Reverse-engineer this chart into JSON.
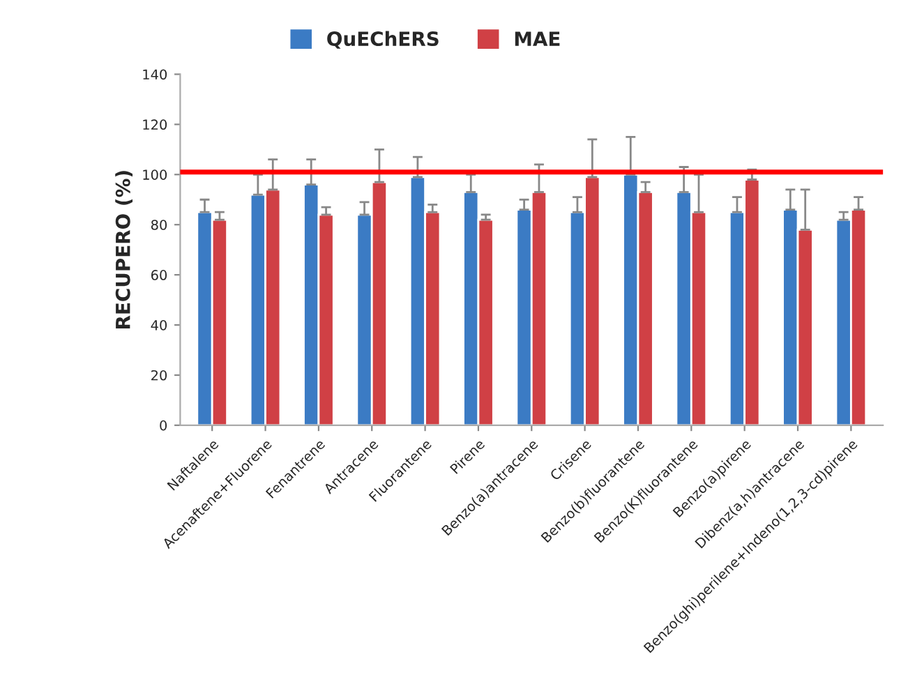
{
  "chart_data": {
    "type": "bar",
    "ylabel": "RECUPERO (%)",
    "categories": [
      "Naftalene",
      "Acenaftene+Fluorene",
      "Fenantrene",
      "Antracene",
      "Fluorantene",
      "Pirene",
      "Benzo(a)antracene",
      "Crisene",
      "Benzo(b)fluorantene",
      "Benzo(K)fluorantene",
      "Benzo(a)pirene",
      "Dibenz(a,h)antracene",
      "Benzo(ghi)perilene+Indeno(1,2,3-cd)pirene"
    ],
    "series": [
      {
        "name": "QuEChERS",
        "color": "#3b7bc4",
        "values": [
          85,
          92,
          96,
          84,
          99,
          93,
          86,
          85,
          100,
          93,
          85,
          86,
          82
        ],
        "errors": [
          [
            85,
            90
          ],
          [
            92,
            100
          ],
          [
            96,
            106
          ],
          [
            84,
            89
          ],
          [
            99,
            107
          ],
          [
            93,
            100
          ],
          [
            86,
            90
          ],
          [
            85,
            91
          ],
          [
            100,
            115
          ],
          [
            93,
            103
          ],
          [
            85,
            91
          ],
          [
            86,
            94
          ],
          [
            82,
            85
          ]
        ]
      },
      {
        "name": "MAE",
        "color": "#d04045",
        "values": [
          82,
          94,
          84,
          97,
          85,
          82,
          93,
          99,
          93,
          85,
          98,
          78,
          86
        ],
        "errors": [
          [
            82,
            85
          ],
          [
            94,
            106
          ],
          [
            84,
            87
          ],
          [
            97,
            110
          ],
          [
            85,
            88
          ],
          [
            82,
            84
          ],
          [
            93,
            104
          ],
          [
            99,
            114
          ],
          [
            93,
            97
          ],
          [
            85,
            100
          ],
          [
            98,
            102
          ],
          [
            78,
            94
          ],
          [
            86,
            91
          ]
        ]
      }
    ],
    "ylim": [
      0,
      140
    ],
    "yticks": [
      0,
      20,
      40,
      60,
      80,
      100,
      120,
      140
    ],
    "ref_lines": [
      {
        "axis": "y",
        "value": 101,
        "color": "#ff0000"
      }
    ],
    "grid": false,
    "legend": "top"
  }
}
